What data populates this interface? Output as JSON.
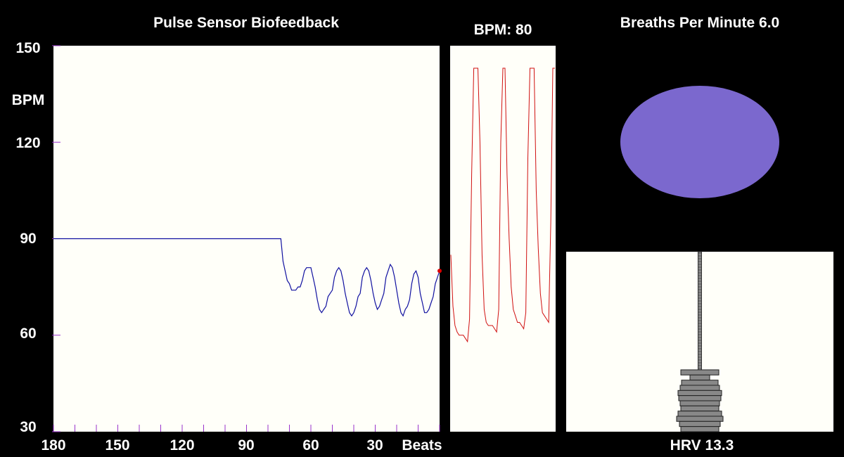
{
  "bpm_chart": {
    "title": "Pulse Sensor Biofeedback",
    "ylabel": "BPM",
    "xlabel": "Beats",
    "y_ticks": [
      "150",
      "120",
      "90",
      "60",
      "30"
    ],
    "x_ticks": [
      "180",
      "150",
      "120",
      "90",
      "60",
      "30"
    ]
  },
  "pulse_panel": {
    "label": "BPM: 80"
  },
  "breath_panel": {
    "title": "Breaths Per Minute 6.0"
  },
  "hrv_panel": {
    "label": "HRV 13.3"
  },
  "colors": {
    "background": "#000000",
    "panel": "#FFFFF9",
    "bpm_line": "#1010A0",
    "tick_marks": "#9933CC",
    "pulse_wave": "#D01010",
    "breath_ellipse": "#7B68CE",
    "histogram_bar": "#888888",
    "current_point": "#DD0000"
  },
  "chart_data": [
    {
      "type": "line",
      "title": "Pulse Sensor Biofeedback",
      "xlabel": "Beats",
      "ylabel": "BPM",
      "xlim": [
        180,
        0
      ],
      "ylim": [
        30,
        150
      ],
      "x_ticks": [
        180,
        150,
        120,
        90,
        60,
        30
      ],
      "y_ticks": [
        30,
        60,
        90,
        120,
        150
      ],
      "grid": false,
      "series": [
        {
          "x": [
            180,
            173,
            166,
            159,
            152,
            145,
            138,
            131,
            124,
            117,
            110,
            103,
            96,
            89,
            82,
            75,
            74,
            73,
            72,
            71,
            70,
            69,
            68,
            67,
            66,
            65,
            64,
            63,
            62,
            61,
            60,
            59,
            58,
            57,
            56,
            55,
            54,
            53,
            52,
            51,
            50,
            49,
            48,
            47,
            46,
            45,
            44,
            43,
            42,
            41,
            40,
            39,
            38,
            37,
            36,
            35,
            34,
            33,
            32,
            31,
            30,
            29,
            28,
            27,
            26,
            25,
            24,
            23,
            22,
            21,
            20,
            19,
            18,
            17,
            16,
            15,
            14,
            13,
            12,
            11,
            10,
            9,
            8,
            7,
            6,
            5,
            4,
            3,
            2,
            1,
            0
          ],
          "values": [
            90,
            90,
            90,
            90,
            90,
            90,
            90,
            90,
            90,
            90,
            90,
            90,
            90,
            90,
            90,
            90,
            90,
            83,
            80,
            77,
            76,
            74,
            74,
            74,
            75,
            75,
            77,
            80,
            81,
            81,
            81,
            78,
            75,
            71,
            68,
            67,
            68,
            69,
            72,
            73,
            74,
            78,
            80,
            81,
            80,
            77,
            73,
            70,
            67,
            66,
            67,
            69,
            72,
            73,
            78,
            80,
            81,
            80,
            77,
            73,
            70,
            68,
            69,
            71,
            73,
            78,
            80,
            82,
            81,
            78,
            74,
            70,
            67,
            66,
            68,
            69,
            71,
            76,
            79,
            80,
            78,
            73,
            70,
            67,
            67,
            68,
            70,
            72,
            76,
            78,
            80
          ]
        }
      ]
    },
    {
      "type": "line",
      "title": "BPM: 80",
      "series": [
        {
          "values": [
            85,
            69,
            63,
            61,
            60,
            60,
            60,
            59,
            58,
            65,
            110,
            143,
            143,
            143,
            120,
            85,
            68,
            64,
            63,
            63,
            63,
            62,
            61,
            68,
            120,
            143,
            143,
            110,
            90,
            75,
            68,
            66,
            64,
            64,
            63,
            62,
            67,
            115,
            143,
            143,
            143,
            105,
            87,
            73,
            67,
            66,
            65,
            64,
            95,
            143,
            143
          ]
        }
      ]
    },
    {
      "type": "bar",
      "title": "HRV 13.3",
      "orientation": "horizontal",
      "values": [
        27,
        14,
        26,
        28,
        31,
        30,
        28,
        27,
        31,
        33,
        29,
        27
      ]
    }
  ]
}
